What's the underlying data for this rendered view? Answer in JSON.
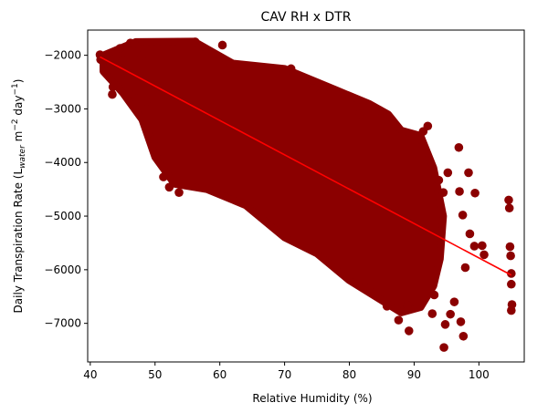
{
  "chart_data": {
    "type": "scatter",
    "title": "CAV RH x DTR",
    "xlabel": "Relative Humidity (%)",
    "ylabel": {
      "prefix": "Daily Transpiration Rate (L",
      "sub": "water",
      "mid": " m",
      "sup1": "−2",
      "mid2": " day",
      "sup2": "−1",
      "suffix": ")"
    },
    "xlim": [
      39.6,
      107.0
    ],
    "ylim": [
      -7720,
      -1530
    ],
    "xticks": [
      40,
      50,
      60,
      70,
      80,
      90,
      100
    ],
    "yticks": [
      -7000,
      -6000,
      -5000,
      -4000,
      -3000,
      -2000
    ],
    "grid": false,
    "marker_color": "#8b0000",
    "fit_line": {
      "color": "#ff0000",
      "x": [
        41.5,
        105
      ],
      "y": [
        -2030,
        -6100
      ]
    },
    "series": [
      {
        "color": "#8b0000",
        "points": [
          [
            41.5,
            -1990
          ],
          [
            41.6,
            -2080
          ],
          [
            42.2,
            -2160
          ],
          [
            42.5,
            -2290
          ],
          [
            43.2,
            -2190
          ],
          [
            43.5,
            -2590
          ],
          [
            43.4,
            -2730
          ],
          [
            44.6,
            -1870
          ],
          [
            45.0,
            -2090
          ],
          [
            45.8,
            -2330
          ],
          [
            46.2,
            -1770
          ],
          [
            46.8,
            -1790
          ],
          [
            47.2,
            -2650
          ],
          [
            48.0,
            -2000
          ],
          [
            48.6,
            -2860
          ],
          [
            49.1,
            -3500
          ],
          [
            49.8,
            -3580
          ],
          [
            50.4,
            -3930
          ],
          [
            51.3,
            -4270
          ],
          [
            52.2,
            -4460
          ],
          [
            53.7,
            -4560
          ],
          [
            56.2,
            -1750
          ],
          [
            60.4,
            -1810
          ],
          [
            71.0,
            -2250
          ],
          [
            74.5,
            -2620
          ],
          [
            81.6,
            -3100
          ],
          [
            83.0,
            -6340
          ],
          [
            84.7,
            -3030
          ],
          [
            85.8,
            -6680
          ],
          [
            87.6,
            -6940
          ],
          [
            89.0,
            -6660
          ],
          [
            89.2,
            -7140
          ],
          [
            90.6,
            -3570
          ],
          [
            91.4,
            -3420
          ],
          [
            92.1,
            -3320
          ],
          [
            92.8,
            -6820
          ],
          [
            93.1,
            -6470
          ],
          [
            93.8,
            -4330
          ],
          [
            94.5,
            -4560
          ],
          [
            94.6,
            -7450
          ],
          [
            94.8,
            -7020
          ],
          [
            95.2,
            -4190
          ],
          [
            95.6,
            -6830
          ],
          [
            96.2,
            -6600
          ],
          [
            96.9,
            -3720
          ],
          [
            97.0,
            -4540
          ],
          [
            97.2,
            -6970
          ],
          [
            97.6,
            -7240
          ],
          [
            97.5,
            -4980
          ],
          [
            97.9,
            -5960
          ],
          [
            98.4,
            -4190
          ],
          [
            98.6,
            -5330
          ],
          [
            99.3,
            -5560
          ],
          [
            99.4,
            -4570
          ],
          [
            100.5,
            -5550
          ],
          [
            100.8,
            -5720
          ],
          [
            104.6,
            -4700
          ],
          [
            104.7,
            -4850
          ],
          [
            104.8,
            -5570
          ],
          [
            104.9,
            -5740
          ],
          [
            105.0,
            -6070
          ],
          [
            105.0,
            -6270
          ],
          [
            105.1,
            -6650
          ],
          [
            105.0,
            -6760
          ]
        ]
      }
    ]
  }
}
